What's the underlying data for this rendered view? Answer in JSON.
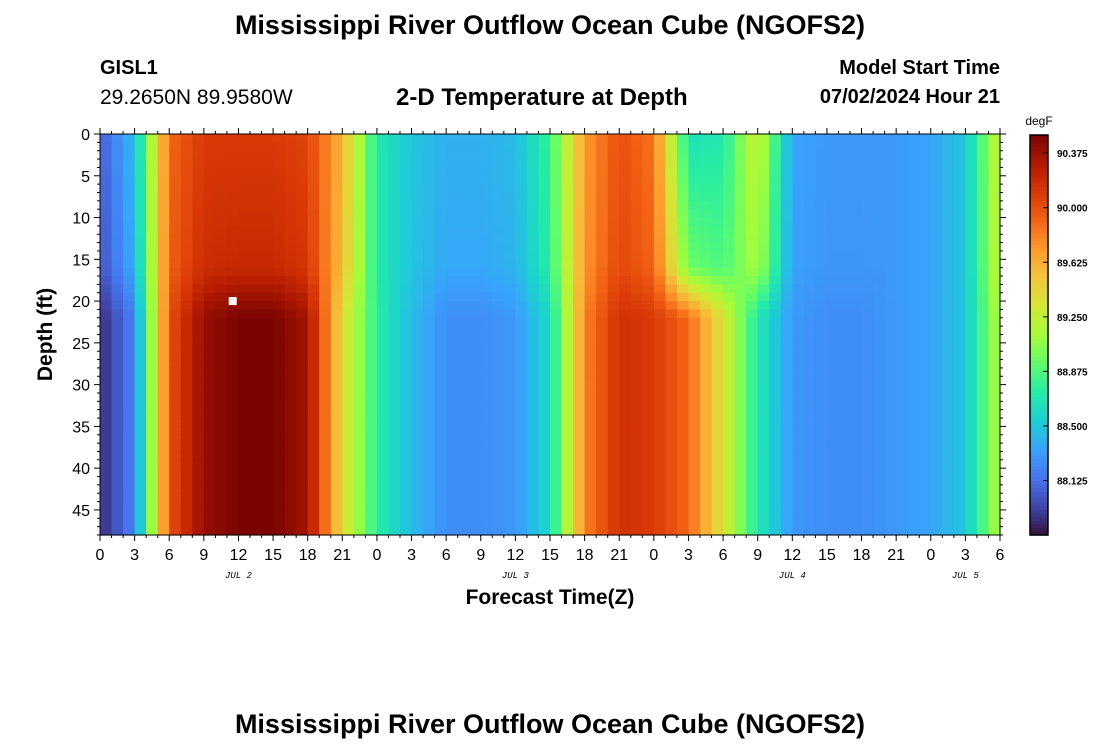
{
  "header": {
    "title": "Mississippi River Outflow Ocean Cube (NGOFS2)",
    "station_name": "GISL1",
    "station_coords": "29.2650N  89.9580W",
    "model_start_label": "Model Start Time",
    "model_start_value": "07/02/2024 Hour 21"
  },
  "footer": {
    "title": "Mississippi River Outflow Ocean Cube (NGOFS2)"
  },
  "chart_data": {
    "type": "heatmap",
    "title": "2-D Temperature at Depth",
    "xlabel": "Forecast Time(Z)",
    "ylabel": "Depth (ft)",
    "ylim": [
      0,
      48
    ],
    "y_inverted": true,
    "xlim_hours": [
      0,
      78
    ],
    "x_tick_labels": [
      "0",
      "3",
      "6",
      "9",
      "12",
      "15",
      "18",
      "21",
      "0",
      "3",
      "6",
      "9",
      "12",
      "15",
      "18",
      "21",
      "0",
      "3",
      "6",
      "9",
      "12",
      "15",
      "18",
      "21",
      "0",
      "3",
      "6"
    ],
    "x_day_labels": [
      {
        "label": "JUL 2",
        "hour": 12
      },
      {
        "label": "JUL 3",
        "hour": 36
      },
      {
        "label": "JUL 4",
        "hour": 60
      },
      {
        "label": "JUL 5",
        "hour": 75
      }
    ],
    "y_ticks": [
      0,
      5,
      10,
      15,
      20,
      25,
      30,
      35,
      40,
      45
    ],
    "depth_layer_boundary_ft": 16,
    "colorbar": {
      "unit": "degF",
      "min": 87.75,
      "max": 90.5,
      "ticks": [
        88.125,
        88.5,
        88.875,
        89.25,
        89.625,
        90.0,
        90.375
      ],
      "tick_labels": [
        "88.125",
        "88.500",
        "88.875",
        "89.250",
        "89.625",
        "90.000",
        "90.375"
      ],
      "colormap": [
        "#30123b",
        "#4145ab",
        "#4675ed",
        "#39a2fc",
        "#1bcfd4",
        "#24eca6",
        "#61fc6c",
        "#a4fc3b",
        "#d1e834",
        "#f3c63a",
        "#fe9b2d",
        "#f36315",
        "#d93806",
        "#b11901",
        "#7a0402"
      ]
    },
    "time_hours": [
      0,
      3,
      6,
      9,
      12,
      15,
      18,
      21,
      24,
      27,
      30,
      33,
      36,
      39,
      42,
      45,
      48,
      51,
      54,
      57,
      60,
      63,
      66,
      69,
      72,
      75,
      78
    ],
    "temperature_surface_degF": [
      88.05,
      88.45,
      89.9,
      90.1,
      90.1,
      90.1,
      90.05,
      89.6,
      88.7,
      88.5,
      88.4,
      88.4,
      88.45,
      88.8,
      89.7,
      90.0,
      89.85,
      88.65,
      88.7,
      89.3,
      88.35,
      88.3,
      88.3,
      88.3,
      88.35,
      88.5,
      89.3
    ],
    "temperature_bottom_degF": [
      87.85,
      88.2,
      90.0,
      90.4,
      90.5,
      90.5,
      90.35,
      89.4,
      88.75,
      88.45,
      88.25,
      88.25,
      88.3,
      88.6,
      89.8,
      90.15,
      90.1,
      89.9,
      89.35,
      88.7,
      88.3,
      88.25,
      88.25,
      88.3,
      88.35,
      88.5,
      89.2
    ],
    "marker": {
      "hour": 11.5,
      "depth_ft": 20
    }
  }
}
